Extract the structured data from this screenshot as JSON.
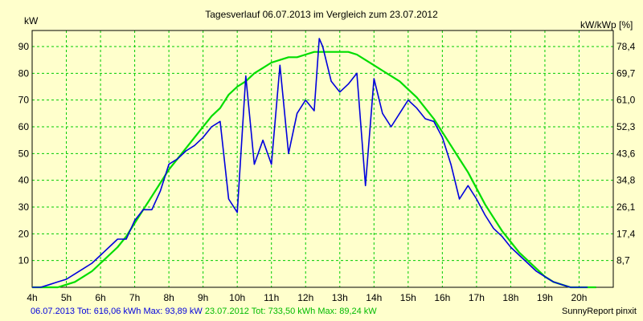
{
  "chart_data": {
    "type": "line",
    "title": "Tagesverlauf 06.07.2013 im Vergleich zum 23.07.2012",
    "ylabel_left": "kW",
    "ylabel_right": "kW/kWp [%]",
    "x_ticks": [
      "4h",
      "5h",
      "6h",
      "7h",
      "8h",
      "9h",
      "10h",
      "11h",
      "12h",
      "13h",
      "14h",
      "15h",
      "16h",
      "17h",
      "18h",
      "19h",
      "20h"
    ],
    "y_left_ticks": [
      10,
      20,
      30,
      40,
      50,
      60,
      70,
      80,
      90
    ],
    "y_right_ticks": [
      "8,7",
      "17,4",
      "26,1",
      "34,8",
      "43,6",
      "52,3",
      "61,0",
      "69,7",
      "78,4"
    ],
    "xlim": [
      4,
      21
    ],
    "ylim": [
      0,
      96
    ],
    "grid": true,
    "series": [
      {
        "name": "06.07.2013",
        "color": "#0000dd",
        "x": [
          4.0,
          4.25,
          4.5,
          4.75,
          5.0,
          5.25,
          5.5,
          5.75,
          6.0,
          6.25,
          6.5,
          6.75,
          7.0,
          7.25,
          7.5,
          7.75,
          8.0,
          8.25,
          8.5,
          8.75,
          9.0,
          9.25,
          9.5,
          9.75,
          10.0,
          10.25,
          10.5,
          10.75,
          11.0,
          11.25,
          11.5,
          11.75,
          12.0,
          12.25,
          12.4,
          12.5,
          12.75,
          13.0,
          13.25,
          13.5,
          13.75,
          14.0,
          14.25,
          14.5,
          14.75,
          15.0,
          15.25,
          15.5,
          15.75,
          16.0,
          16.25,
          16.5,
          16.75,
          17.0,
          17.25,
          17.5,
          17.75,
          18.0,
          18.25,
          18.5,
          18.75,
          19.0,
          19.25,
          19.5,
          19.75,
          20.0,
          20.25
        ],
        "y": [
          0,
          0,
          1,
          2,
          3,
          5,
          7,
          9,
          12,
          15,
          18,
          18,
          25,
          29,
          29,
          36,
          46,
          48,
          51,
          53,
          56,
          60,
          62,
          33,
          28,
          79,
          46,
          55,
          46,
          83,
          50,
          65,
          70,
          66,
          93,
          90,
          77,
          73,
          76,
          80,
          38,
          78,
          65,
          60,
          65,
          70,
          67,
          63,
          62,
          56,
          46,
          33,
          38,
          33,
          27,
          22,
          19,
          15,
          12,
          9,
          6,
          4,
          2,
          1,
          0,
          0,
          0
        ]
      },
      {
        "name": "23.07.2012",
        "color": "#00dd00",
        "x": [
          4.0,
          4.25,
          4.5,
          4.75,
          5.0,
          5.25,
          5.5,
          5.75,
          6.0,
          6.25,
          6.5,
          6.75,
          7.0,
          7.25,
          7.5,
          7.75,
          8.0,
          8.25,
          8.5,
          8.75,
          9.0,
          9.25,
          9.5,
          9.75,
          10.0,
          10.25,
          10.5,
          10.75,
          11.0,
          11.25,
          11.5,
          11.75,
          12.0,
          12.25,
          12.5,
          12.75,
          13.0,
          13.25,
          13.5,
          13.75,
          14.0,
          14.25,
          14.5,
          14.75,
          15.0,
          15.25,
          15.5,
          15.75,
          16.0,
          16.25,
          16.5,
          16.75,
          17.0,
          17.25,
          17.5,
          17.75,
          18.0,
          18.25,
          18.5,
          18.75,
          19.0,
          19.25,
          19.5,
          19.75,
          20.0,
          20.25,
          20.5
        ],
        "y": [
          0,
          0,
          0,
          0,
          1,
          2,
          4,
          6,
          9,
          12,
          15,
          19,
          24,
          29,
          34,
          39,
          44,
          48,
          52,
          56,
          60,
          64,
          67,
          72,
          75,
          77,
          80,
          82,
          84,
          85,
          86,
          86,
          87,
          88,
          88,
          88,
          88,
          88,
          87,
          85,
          83,
          81,
          79,
          77,
          74,
          71,
          67,
          63,
          58,
          53,
          48,
          43,
          37,
          31,
          26,
          21,
          17,
          13,
          10,
          7,
          4,
          2,
          1,
          0,
          0,
          0,
          0
        ]
      }
    ]
  },
  "footer": {
    "s1_text": "06.07.2013 Tot: 616,06 kWh Max: 93,89 kW",
    "s2_text": "23.07.2012 Tot: 733,50 kWh Max: 89,24 kW",
    "credit": "SunnyReport pinxit"
  }
}
